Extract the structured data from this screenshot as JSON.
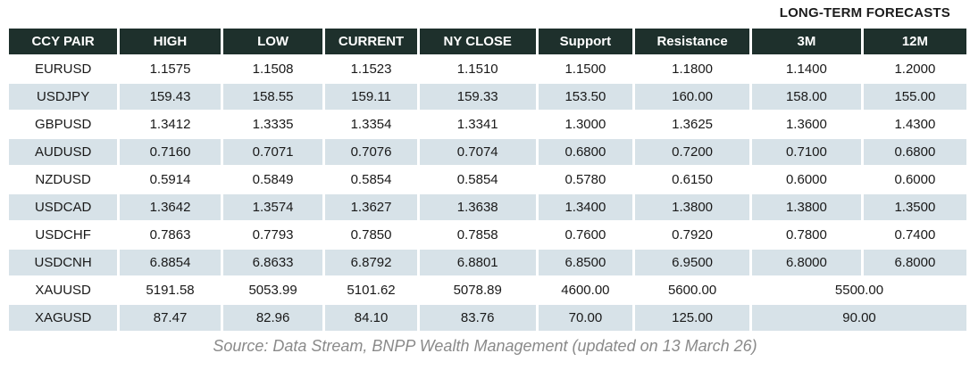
{
  "title": "LONG-TERM FORECASTS",
  "table": {
    "columns": [
      "CCY PAIR",
      "HIGH",
      "LOW",
      "CURRENT",
      "NY CLOSE",
      "Support",
      "Resistance",
      "3M",
      "12M"
    ],
    "rows": [
      {
        "pair": "EURUSD",
        "values": [
          "1.1575",
          "1.1508",
          "1.1523",
          "1.1510",
          "1.1500",
          "1.1800",
          "1.1400",
          "1.2000"
        ]
      },
      {
        "pair": "USDJPY",
        "values": [
          "159.43",
          "158.55",
          "159.11",
          "159.33",
          "153.50",
          "160.00",
          "158.00",
          "155.00"
        ]
      },
      {
        "pair": "GBPUSD",
        "values": [
          "1.3412",
          "1.3335",
          "1.3354",
          "1.3341",
          "1.3000",
          "1.3625",
          "1.3600",
          "1.4300"
        ]
      },
      {
        "pair": "AUDUSD",
        "values": [
          "0.7160",
          "0.7071",
          "0.7076",
          "0.7074",
          "0.6800",
          "0.7200",
          "0.7100",
          "0.6800"
        ]
      },
      {
        "pair": "NZDUSD",
        "values": [
          "0.5914",
          "0.5849",
          "0.5854",
          "0.5854",
          "0.5780",
          "0.6150",
          "0.6000",
          "0.6000"
        ]
      },
      {
        "pair": "USDCAD",
        "values": [
          "1.3642",
          "1.3574",
          "1.3627",
          "1.3638",
          "1.3400",
          "1.3800",
          "1.3800",
          "1.3500"
        ]
      },
      {
        "pair": "USDCHF",
        "values": [
          "0.7863",
          "0.7793",
          "0.7850",
          "0.7858",
          "0.7600",
          "0.7920",
          "0.7800",
          "0.7400"
        ]
      },
      {
        "pair": "USDCNH",
        "values": [
          "6.8854",
          "6.8633",
          "6.8792",
          "6.8801",
          "6.8500",
          "6.9500",
          "6.8000",
          "6.8000"
        ]
      },
      {
        "pair": "XAUUSD",
        "values": [
          "5191.58",
          "5053.99",
          "5101.62",
          "5078.89",
          "4600.00",
          "5600.00"
        ],
        "merged_forecast": "5500.00"
      },
      {
        "pair": "XAGUSD",
        "values": [
          "87.47",
          "82.96",
          "84.10",
          "83.76",
          "70.00",
          "125.00"
        ],
        "merged_forecast": "90.00"
      }
    ]
  },
  "footer": "Source: Data Stream, BNPP Wealth Management (updated on 13 March 26)",
  "colors": {
    "header_bg": "#1e302c",
    "stripe_bg": "#d7e2e8",
    "text": "#191919",
    "footer_text": "#8a8a8a"
  }
}
